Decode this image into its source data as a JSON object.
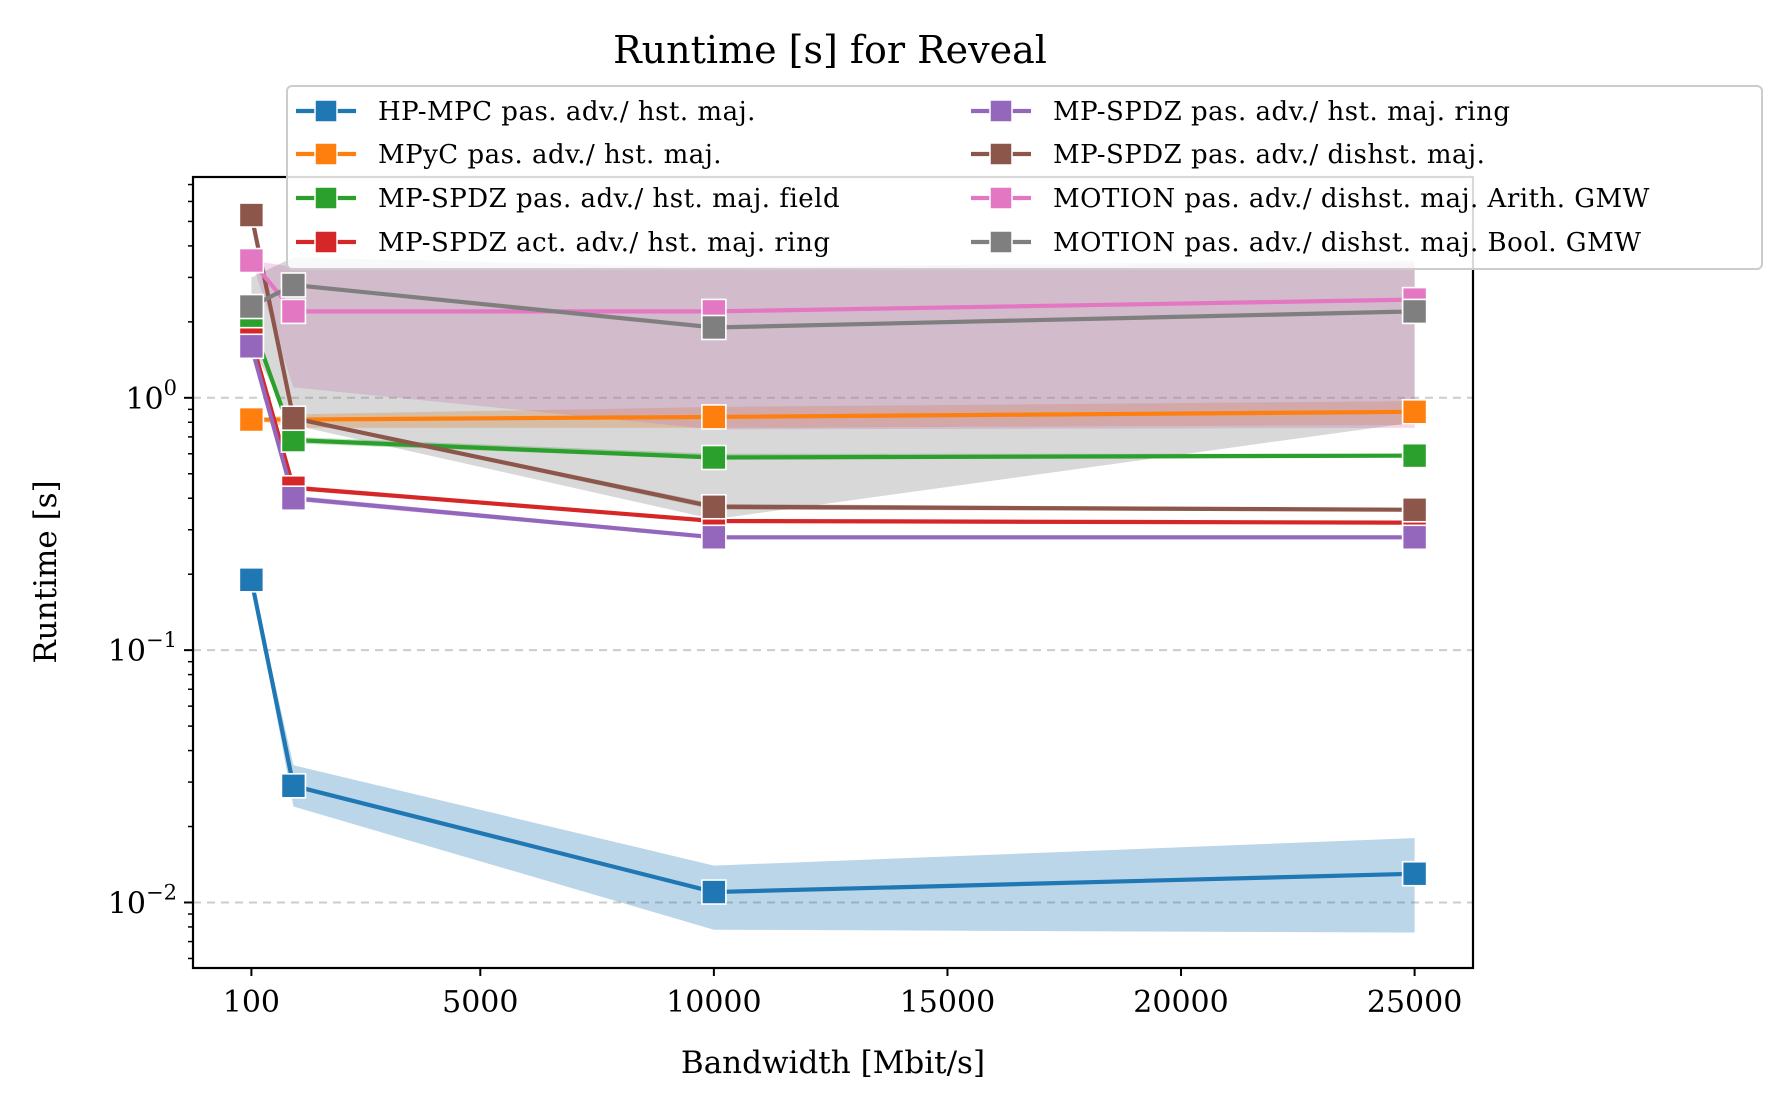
{
  "chart_data": {
    "type": "line",
    "title": "Runtime [s] for Reveal",
    "xlabel": "Bandwidth [Mbit/s]",
    "ylabel": "Runtime [s]",
    "yscale": "log",
    "xlim": [
      -1150,
      26250
    ],
    "ylim": [
      0.0055,
      7.5
    ],
    "xticks": [
      100,
      5000,
      10000,
      15000,
      20000,
      25000
    ],
    "xtick_labels": [
      "100",
      "5000",
      "10000",
      "15000",
      "20000",
      "25000"
    ],
    "yticks": [
      0.01,
      0.1,
      1
    ],
    "ytick_labels": [
      {
        "base": "10",
        "exp": "−2"
      },
      {
        "base": "10",
        "exp": "−1"
      },
      {
        "base": "10",
        "exp": "0"
      }
    ],
    "grid": "horizontal dashed at major y ticks",
    "legend_placement": "upper-right, two columns, extending beyond plot",
    "x": [
      100,
      1000,
      10000,
      25000
    ],
    "series": [
      {
        "name": "HP-MPC pas. adv./ hst. maj.",
        "color": "#1f77b4",
        "values": [
          0.19,
          0.029,
          0.011,
          0.013
        ],
        "band_low": [
          0.19,
          0.024,
          0.0078,
          0.0076
        ],
        "band_high": [
          0.19,
          0.035,
          0.014,
          0.018
        ]
      },
      {
        "name": "MPyC pas. adv./ hst. maj.",
        "color": "#ff7f0e",
        "values": [
          0.82,
          0.82,
          0.84,
          0.88
        ],
        "band_low": [
          0.82,
          0.76,
          0.76,
          0.78
        ],
        "band_high": [
          0.82,
          0.86,
          0.92,
          0.97
        ]
      },
      {
        "name": "MP-SPDZ pas. adv./ hst. maj. field",
        "color": "#2ca02c",
        "values": [
          2.0,
          0.68,
          0.58,
          0.59
        ],
        "band_low": [
          2.0,
          0.66,
          0.57,
          0.58
        ],
        "band_high": [
          2.0,
          0.7,
          0.6,
          0.6
        ]
      },
      {
        "name": "MP-SPDZ act. adv./ hst. maj. ring",
        "color": "#d62728",
        "values": [
          1.7,
          0.44,
          0.325,
          0.32
        ],
        "band_low": [
          1.7,
          0.43,
          0.32,
          0.315
        ],
        "band_high": [
          1.7,
          0.45,
          0.33,
          0.325
        ]
      },
      {
        "name": "MP-SPDZ pas. adv./ hst. maj. ring",
        "color": "#9467bd",
        "values": [
          1.6,
          0.4,
          0.28,
          0.28
        ],
        "band_low": [
          1.6,
          0.39,
          0.275,
          0.275
        ],
        "band_high": [
          1.6,
          0.41,
          0.285,
          0.285
        ]
      },
      {
        "name": "MP-SPDZ pas. adv./ dishst. maj.",
        "color": "#8c564b",
        "values": [
          5.3,
          0.83,
          0.37,
          0.36
        ],
        "band_low": [
          5.3,
          0.82,
          0.36,
          0.355
        ],
        "band_high": [
          5.3,
          0.84,
          0.38,
          0.365
        ]
      },
      {
        "name": "MOTION pas. adv./ dishst. maj. Arith. GMW",
        "color": "#e377c2",
        "values": [
          3.5,
          2.2,
          2.2,
          2.45
        ],
        "band_low": [
          3.5,
          1.1,
          0.75,
          0.76
        ],
        "band_high": [
          3.5,
          3.3,
          3.3,
          3.4
        ]
      },
      {
        "name": "MOTION pas. adv./ dishst. maj. Bool. GMW",
        "color": "#7f7f7f",
        "values": [
          2.3,
          2.8,
          1.9,
          2.2
        ],
        "band_low": [
          1.6,
          0.78,
          0.33,
          0.8
        ],
        "band_high": [
          3.0,
          3.6,
          3.3,
          3.5
        ]
      }
    ]
  }
}
